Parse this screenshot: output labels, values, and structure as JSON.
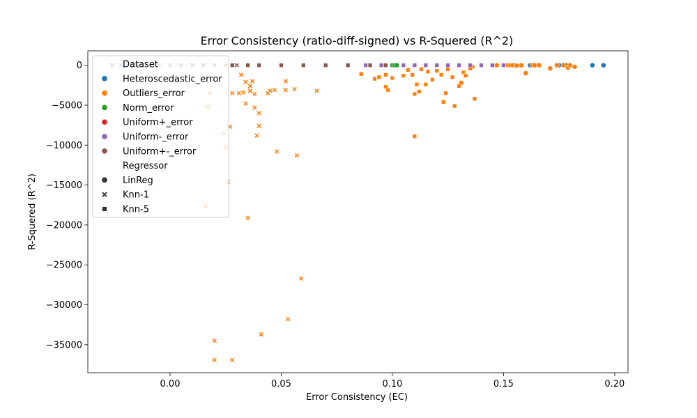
{
  "chart_data": {
    "type": "scatter",
    "title": "Error Consistency (ratio-diff-signed) vs R-Squered (R^2)",
    "xlabel": "Error Consistency (EC)",
    "ylabel": "R-Squered (R^2)",
    "xlim": [
      -0.037,
      0.206
    ],
    "ylim": [
      -38500,
      1800
    ],
    "xticks": [
      0.0,
      0.05,
      0.1,
      0.15,
      0.2
    ],
    "xtick_labels": [
      "0.00",
      "0.05",
      "0.10",
      "0.15",
      "0.20"
    ],
    "yticks": [
      0,
      -5000,
      -10000,
      -15000,
      -20000,
      -25000,
      -30000,
      -35000
    ],
    "ytick_labels": [
      "0",
      "−5000",
      "−10000",
      "−15000",
      "−20000",
      "−25000",
      "−30000",
      "−35000"
    ],
    "grid": false,
    "legend": {
      "placement": "upper-left",
      "hue_title": "Dataset",
      "style_title": "Regressor",
      "datasets": [
        {
          "name": "Heteroscedastic_error",
          "color": "#1f77b4"
        },
        {
          "name": "Outliers_error",
          "color": "#ff7f0e"
        },
        {
          "name": "Norm_error",
          "color": "#2ca02c"
        },
        {
          "name": "Uniform+_error",
          "color": "#d62728"
        },
        {
          "name": "Uniform-_error",
          "color": "#9467bd"
        },
        {
          "name": "Uniform+-_error",
          "color": "#8c564b"
        }
      ],
      "regressors": [
        {
          "name": "LinReg",
          "marker": "circle"
        },
        {
          "name": "Knn-1",
          "marker": "x"
        },
        {
          "name": "Knn-5",
          "marker": "square"
        }
      ]
    },
    "series": [
      {
        "dataset": "Heteroscedastic_error",
        "regressor": "LinReg",
        "x": [
          0.155,
          0.162,
          0.175,
          0.178,
          0.19,
          0.195
        ],
        "y": [
          0,
          0,
          0,
          0,
          0,
          0
        ]
      },
      {
        "dataset": "Heteroscedastic_error",
        "regressor": "Knn-1",
        "x": [
          -0.026,
          -0.022,
          -0.015
        ],
        "y": [
          0,
          0,
          0
        ]
      },
      {
        "dataset": "Outliers_error",
        "regressor": "LinReg",
        "x": [
          0.097,
          0.131,
          0.136,
          0.145,
          0.147,
          0.152,
          0.153,
          0.154,
          0.156,
          0.158,
          0.16,
          0.163,
          0.164,
          0.166,
          0.171,
          0.174,
          0.177,
          0.179,
          0.18,
          0.182
        ],
        "y": [
          0,
          -2200,
          -200,
          0,
          0,
          0,
          0,
          0,
          -50,
          0,
          -1000,
          0,
          0,
          0,
          -400,
          0,
          0,
          -300,
          0,
          -200
        ]
      },
      {
        "dataset": "Outliers_error",
        "regressor": "Knn-1",
        "x": [
          0.016,
          0.017,
          0.018,
          0.02,
          0.02,
          0.024,
          0.025,
          0.026,
          0.027,
          0.028,
          0.028,
          0.031,
          0.032,
          0.033,
          0.034,
          0.034,
          0.035,
          0.036,
          0.036,
          0.037,
          0.038,
          0.038,
          0.039,
          0.04,
          0.04,
          0.041,
          0.044,
          0.045,
          0.047,
          0.048,
          0.052,
          0.052,
          0.053,
          0.056,
          0.057,
          0.059,
          0.066
        ],
        "y": [
          -17600,
          -5200,
          -3500,
          -34500,
          -36900,
          -8500,
          -10300,
          -14600,
          -7700,
          -3500,
          -36900,
          -3500,
          -1200,
          -3400,
          -2100,
          -4800,
          -19100,
          -2600,
          -3200,
          -2000,
          -5300,
          -3600,
          -8800,
          -6000,
          -7600,
          -33700,
          -3500,
          -3200,
          -3100,
          -10800,
          -3100,
          -2000,
          -31800,
          -3000,
          -11300,
          -26700,
          -3200
        ]
      },
      {
        "dataset": "Outliers_error",
        "regressor": "Knn-5",
        "x": [
          0.086,
          0.092,
          0.094,
          0.097,
          0.097,
          0.098,
          0.1,
          0.105,
          0.107,
          0.109,
          0.11,
          0.11,
          0.111,
          0.112,
          0.113,
          0.115,
          0.116,
          0.118,
          0.12,
          0.122,
          0.123,
          0.124,
          0.125,
          0.127,
          0.128,
          0.13,
          0.132,
          0.133,
          0.135,
          0.137
        ],
        "y": [
          -1100,
          -1700,
          -1500,
          -2700,
          -1200,
          -3100,
          -1600,
          -1300,
          -600,
          -1200,
          -3600,
          -8900,
          -2400,
          -3300,
          -500,
          -2400,
          -800,
          -1800,
          -700,
          -1200,
          -4600,
          -3500,
          -500,
          -1500,
          -5100,
          -2600,
          -900,
          -1300,
          -400,
          -4200
        ]
      },
      {
        "dataset": "Norm_error",
        "regressor": "LinReg",
        "x": [
          0.1,
          0.101,
          0.102
        ],
        "y": [
          0,
          0,
          0
        ]
      },
      {
        "dataset": "Uniform-_error",
        "regressor": "Knn-5",
        "x": [
          0.088,
          0.095,
          0.105,
          0.11,
          0.115,
          0.12,
          0.125,
          0.13,
          0.135,
          0.14,
          0.145,
          0.15
        ],
        "y": [
          0,
          0,
          0,
          0,
          0,
          0,
          0,
          0,
          0,
          0,
          0,
          0
        ]
      },
      {
        "dataset": "Uniform+-_error",
        "regressor": "Knn-1",
        "x": [
          -0.005,
          0.0,
          0.005,
          0.01,
          0.015,
          0.02,
          0.025,
          0.03
        ],
        "y": [
          0,
          0,
          0,
          0,
          0,
          0,
          0,
          0
        ]
      },
      {
        "dataset": "Uniform+-_error",
        "regressor": "Knn-5",
        "x": [
          0.028,
          0.035,
          0.04,
          0.05,
          0.06,
          0.07,
          0.08,
          0.09,
          0.097
        ],
        "y": [
          0,
          0,
          0,
          0,
          0,
          0,
          0,
          0,
          0
        ]
      }
    ]
  }
}
